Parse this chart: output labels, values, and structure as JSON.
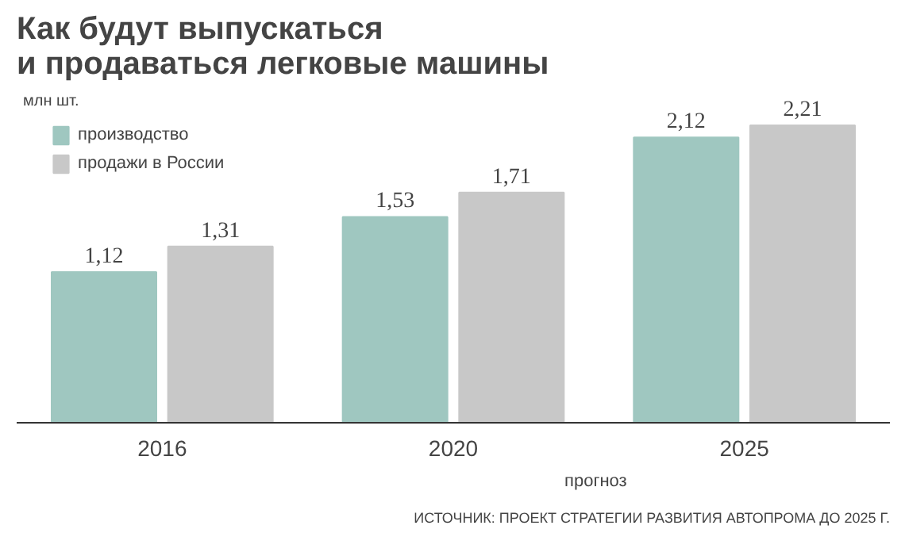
{
  "chart_data": {
    "type": "bar",
    "title": "Как будут выпускаться\nи продаваться легковые машины",
    "categories": [
      "2016",
      "2020",
      "2025"
    ],
    "series": [
      {
        "name": "производство",
        "color": "#9fc7c0",
        "values": [
          1.12,
          1.53,
          2.12
        ],
        "value_labels": [
          "1,12",
          "1,53",
          "2,12"
        ]
      },
      {
        "name": "продажи в России",
        "color": "#c8c8c8",
        "values": [
          1.31,
          1.71,
          2.21
        ],
        "value_labels": [
          "1,31",
          "1,71",
          "2,21"
        ]
      }
    ],
    "legend": "top left",
    "tick_labels": "x",
    "annotations": [
      "млн шт.",
      "прогноз",
      "ИСТОЧНИК: ПРОЕКТ СТРАТЕГИИ РАЗВИТИЯ АВТОПРОМА ДО 2025 Г."
    ]
  }
}
